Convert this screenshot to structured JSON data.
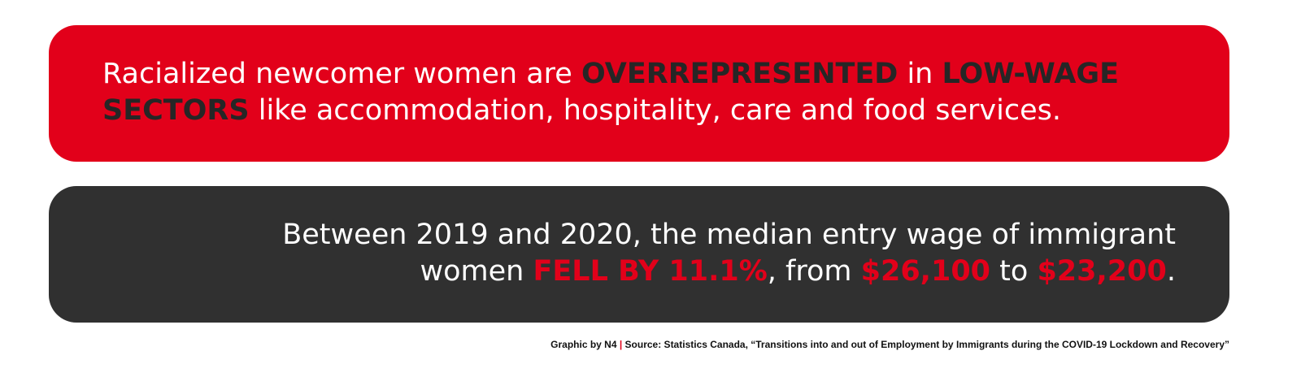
{
  "colors": {
    "brand_red": "#e2001a",
    "dark_panel": "#303030",
    "dark_highlight": "#262626",
    "text_white": "#ffffff"
  },
  "panel_red": {
    "line1": {
      "part1": "Racialized newcomer women are ",
      "highlight1": "OVERREPRESENTED",
      "part2": " in ",
      "highlight2": "LOW-WAGE"
    },
    "line2": {
      "highlight": "SECTORS",
      "part": " like accommodation, hospitality, care and food services."
    }
  },
  "panel_dark": {
    "line1": "Between 2019 and 2020, the median entry wage of immigrant",
    "line2": {
      "part1": "women ",
      "highlight1": "FELL BY 11.1%",
      "part2": ", from ",
      "highlight2": "$26,100",
      "part3": " to ",
      "highlight3": "$23,200",
      "part4": "."
    }
  },
  "credit": {
    "graphic_by": "Graphic by N4",
    "separator": "|",
    "source": "Source: Statistics Canada, “Transitions into and out of Employment by Immigrants during the COVID-19 Lockdown and Recovery”"
  }
}
